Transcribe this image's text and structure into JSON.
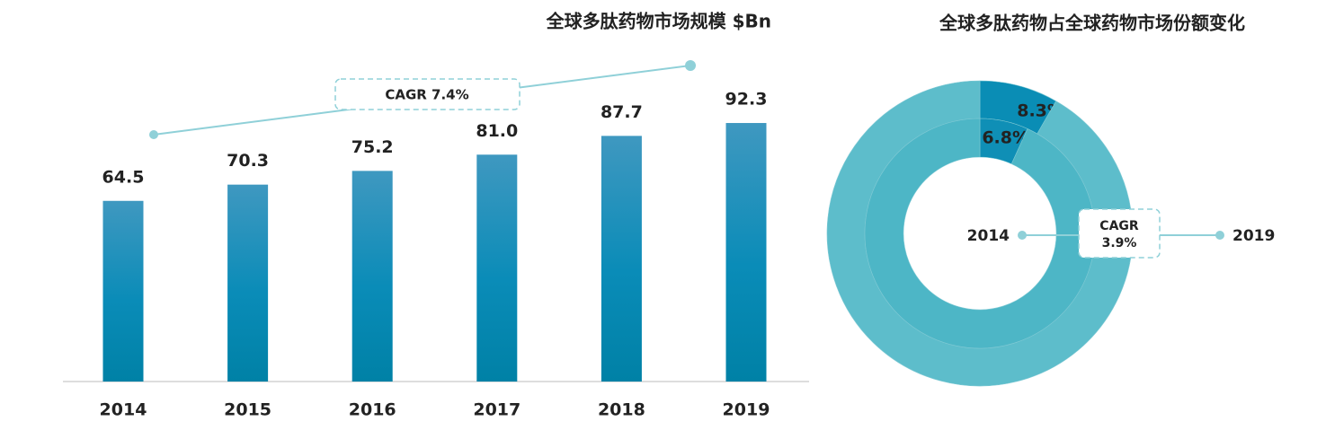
{
  "chart_data": [
    {
      "type": "bar",
      "title": "全球多肽药物市场规模 $Bn",
      "categories": [
        "2014",
        "2015",
        "2016",
        "2017",
        "2018",
        "2019"
      ],
      "values": [
        64.5,
        70.3,
        75.2,
        81.0,
        87.7,
        92.3
      ],
      "value_labels": [
        "64.5",
        "70.3",
        "75.2",
        "81.0",
        "87.7",
        "92.3"
      ],
      "color": "#1a8db5",
      "ylim": [
        0,
        100
      ],
      "annotation": "CAGR 7.4%"
    },
    {
      "type": "donut",
      "title": "全球多肽药物占全球药物市场份额变化",
      "series": [
        {
          "name": "2019",
          "values": [
            8.3,
            91.7
          ],
          "value_labels": [
            "8.3%",
            null
          ],
          "colors": [
            "#0a8db5",
            "#5dbdcb"
          ]
        },
        {
          "name": "2014",
          "values": [
            6.8,
            93.2
          ],
          "value_labels": [
            "6.8%",
            null
          ],
          "colors": [
            "#0f8fb6",
            "#4db6c6"
          ]
        }
      ],
      "annotation": [
        "CAGR",
        "3.9%"
      ]
    }
  ]
}
